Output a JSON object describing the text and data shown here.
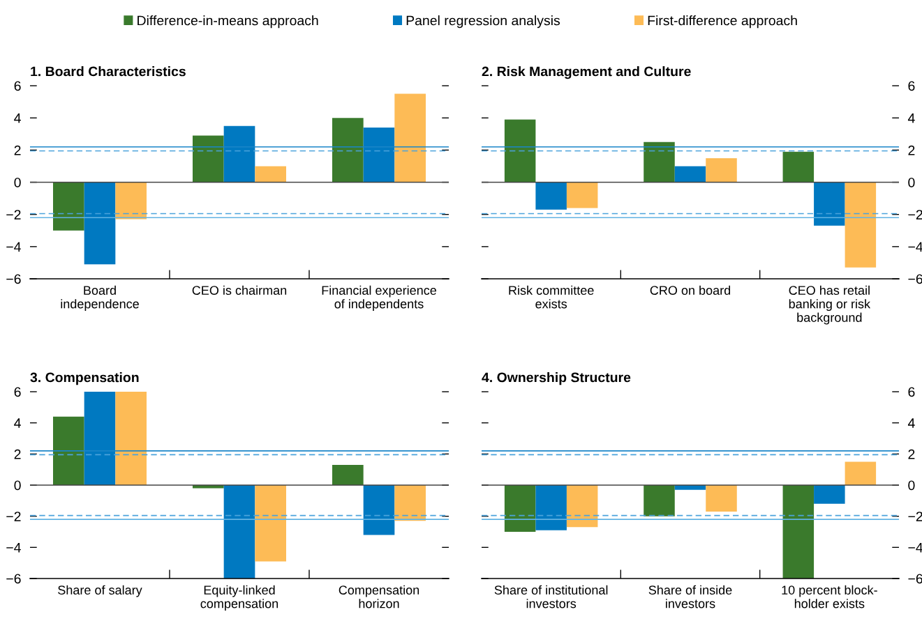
{
  "chart_data": [
    {
      "type": "bar",
      "title": "1. Board Characteristics",
      "categories": [
        "Board\nindependence",
        "CEO is chairman",
        "Financial experience\nof independents"
      ],
      "series": [
        {
          "name": "Difference-in-means approach",
          "color": "#3a7a2c",
          "values": [
            -3.0,
            2.9,
            4.0
          ]
        },
        {
          "name": "Panel regression analysis",
          "color": "#0079c1",
          "values": [
            -5.1,
            3.5,
            3.4
          ]
        },
        {
          "name": "First-difference approach",
          "color": "#fdbb56",
          "values": [
            -2.3,
            1.0,
            5.5
          ]
        }
      ],
      "ylim": [
        -6,
        6
      ],
      "yticks": [
        {
          "value": -6,
          "label": "−6"
        },
        {
          "value": -4,
          "label": "−4"
        },
        {
          "value": -2,
          "label": "−2"
        },
        0,
        2,
        4,
        6
      ],
      "ref_lines": [
        {
          "axis": "y",
          "value": 2.2,
          "color": "#1b86c8"
        },
        {
          "axis": "y",
          "value": 1.95,
          "color": "#4ba3dc",
          "line_style": "dashed"
        },
        {
          "axis": "y",
          "value": -1.95,
          "color": "#4ba3dc",
          "line_style": "dashed"
        },
        {
          "axis": "y",
          "value": -2.2,
          "color": "#62b3e3"
        }
      ],
      "legend": "top"
    },
    {
      "type": "bar",
      "title": "2. Risk Management and Culture",
      "categories": [
        "Risk committee\nexists",
        "CRO on board",
        "CEO has retail\nbanking or risk\nbackground"
      ],
      "series": [
        {
          "color": "#3a7a2c",
          "axis": "y2",
          "values": [
            3.9,
            2.5,
            1.9
          ]
        },
        {
          "color": "#0079c1",
          "axis": "y2",
          "values": [
            -1.7,
            1.0,
            -2.7
          ]
        },
        {
          "color": "#fdbb56",
          "axis": "y2",
          "values": [
            -1.6,
            1.5,
            -5.3
          ]
        }
      ],
      "y2lim": [
        -6,
        6
      ],
      "y2ticks": [
        {
          "value": -6,
          "label": "−6"
        },
        {
          "value": -4,
          "label": "−4"
        },
        {
          "value": -2,
          "label": "−2"
        },
        0,
        2,
        4,
        6
      ],
      "ref_lines": [
        {
          "axis": "y2",
          "value": 2.2,
          "color": "#1b86c8"
        },
        {
          "axis": "y2",
          "value": 1.95,
          "color": "#4ba3dc",
          "line_style": "dashed"
        },
        {
          "axis": "y2",
          "value": -1.95,
          "color": "#4ba3dc",
          "line_style": "dashed"
        },
        {
          "axis": "y2",
          "value": -2.2,
          "color": "#62b3e3"
        }
      ]
    },
    {
      "type": "bar",
      "title": "3. Compensation",
      "categories": [
        "Share of salary",
        "Equity-linked\ncompensation",
        "Compensation\nhorizon"
      ],
      "series": [
        {
          "color": "#3a7a2c",
          "values": [
            4.4,
            -0.2,
            1.3
          ]
        },
        {
          "color": "#0079c1",
          "values": [
            6,
            -6,
            -3.2
          ]
        },
        {
          "color": "#fdbb56",
          "values": [
            6,
            -4.9,
            -2.3
          ]
        }
      ],
      "ylim": [
        -6,
        6
      ],
      "yticks": [
        {
          "value": -6,
          "label": "−6"
        },
        {
          "value": -4,
          "label": "−4"
        },
        {
          "value": -2,
          "label": "−2"
        },
        0,
        2,
        4,
        6
      ],
      "ref_lines": [
        {
          "axis": "y",
          "value": 2.2,
          "color": "#1b86c8"
        },
        {
          "axis": "y",
          "value": 1.95,
          "color": "#4ba3dc",
          "line_style": "dashed"
        },
        {
          "axis": "y",
          "value": -1.95,
          "color": "#4ba3dc",
          "line_style": "dashed"
        },
        {
          "axis": "y",
          "value": -2.2,
          "color": "#62b3e3"
        }
      ]
    },
    {
      "type": "bar",
      "title": "4. Ownership Structure",
      "categories": [
        "Share of institutional\ninvestors",
        "Share of inside\ninvestors",
        "10 percent block-\nholder exists"
      ],
      "series": [
        {
          "color": "#3a7a2c",
          "axis": "y2",
          "values": [
            -3.0,
            -2.0,
            -6
          ]
        },
        {
          "color": "#0079c1",
          "axis": "y2",
          "values": [
            -2.9,
            -0.3,
            -1.2
          ]
        },
        {
          "color": "#fdbb56",
          "axis": "y2",
          "values": [
            -2.7,
            -1.7,
            1.5
          ]
        }
      ],
      "y2lim": [
        -6,
        6
      ],
      "y2ticks": [
        {
          "value": -6,
          "label": "−6"
        },
        {
          "value": -4,
          "label": "−4"
        },
        {
          "value": -2,
          "label": "−2"
        },
        0,
        2,
        4,
        6
      ],
      "ref_lines": [
        {
          "axis": "y2",
          "value": 2.2,
          "color": "#1b86c8"
        },
        {
          "axis": "y2",
          "value": 1.95,
          "color": "#4ba3dc",
          "line_style": "dashed"
        },
        {
          "axis": "y2",
          "value": -1.95,
          "color": "#4ba3dc",
          "line_style": "dashed"
        },
        {
          "axis": "y2",
          "value": -2.2,
          "color": "#62b3e3"
        }
      ]
    }
  ]
}
